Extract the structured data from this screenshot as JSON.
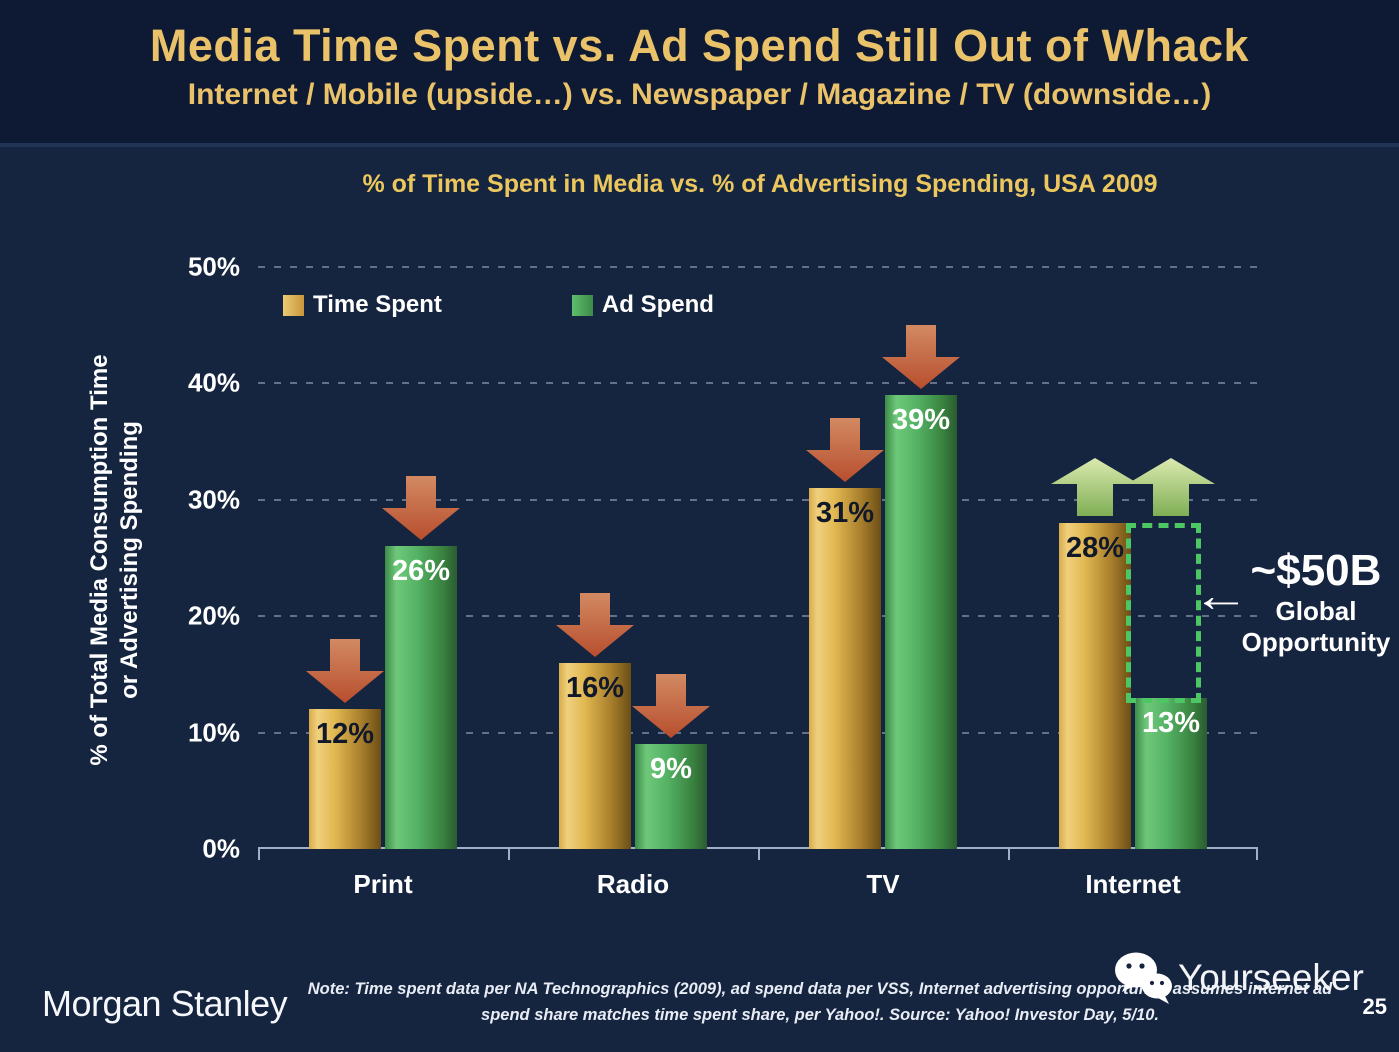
{
  "header": {
    "title": "Media Time Spent vs. Ad Spend Still Out of Whack",
    "subtitle": "Internet / Mobile (upside…) vs. Newspaper / Magazine / TV (downside…)"
  },
  "chart": {
    "title": "% of Time Spent in Media vs. % of Advertising Spending, USA 2009",
    "y_axis_title_line1": "% of Total Media Consumption Time",
    "y_axis_title_line2": "or Advertising Spending",
    "legend": [
      {
        "label": "Time Spent",
        "color": "#D9A94C"
      },
      {
        "label": "Ad Spend",
        "color": "#4DA35A"
      }
    ]
  },
  "chart_data": {
    "type": "bar",
    "title": "% of Time Spent in Media vs. % of Advertising Spending, USA 2009",
    "categories": [
      "Print",
      "Radio",
      "TV",
      "Internet"
    ],
    "series": [
      {
        "name": "Time Spent",
        "color": "#D9A94C",
        "values": [
          12,
          16,
          31,
          28
        ]
      },
      {
        "name": "Ad Spend",
        "color": "#4DA35A",
        "values": [
          26,
          9,
          39,
          13
        ]
      }
    ],
    "value_suffix": "%",
    "ylabel": "% of Total Media Consumption Time or Advertising Spending",
    "ylim": [
      0,
      50
    ],
    "yticks": [
      0,
      10,
      20,
      30,
      40,
      50
    ],
    "ytick_suffix": "%",
    "grid": "horizontal dashed",
    "legend_position": "top-left inside plot",
    "trend_arrows": {
      "Print": "down",
      "Radio": "down",
      "TV": "down",
      "Internet": "up"
    },
    "gap_annotation": {
      "category": "Internet",
      "from_value": 13,
      "to_value": 28,
      "label": "~$50B Global Opportunity"
    }
  },
  "annotation": {
    "value": "~$50B",
    "line1": "Global",
    "line2": "Opportunity",
    "arrow_glyph": "←"
  },
  "footer": {
    "brand": "Morgan Stanley",
    "note_line1": "Note: Time spent data per NA Technographics (2009), ad spend data per VSS, Internet advertising opportunity assumes internet ad",
    "note_line2": "spend share matches time spent share, per Yahoo!. Source: Yahoo! Investor Day, 5/10.",
    "watermark": "Yourseeker",
    "page_number": "25"
  },
  "colors": {
    "slide_background": "#15243F",
    "header_background": "#0E1A33",
    "title_gold": "#E9C269",
    "bar_gold": "#D9A94C",
    "bar_green": "#4DA35A",
    "down_arrow_red": "#BC5433",
    "up_arrow_green": "#A9C878",
    "gap_box_green": "#4CC764",
    "axis_line": "#9FB0C9",
    "text_white": "#FFFFFF"
  }
}
